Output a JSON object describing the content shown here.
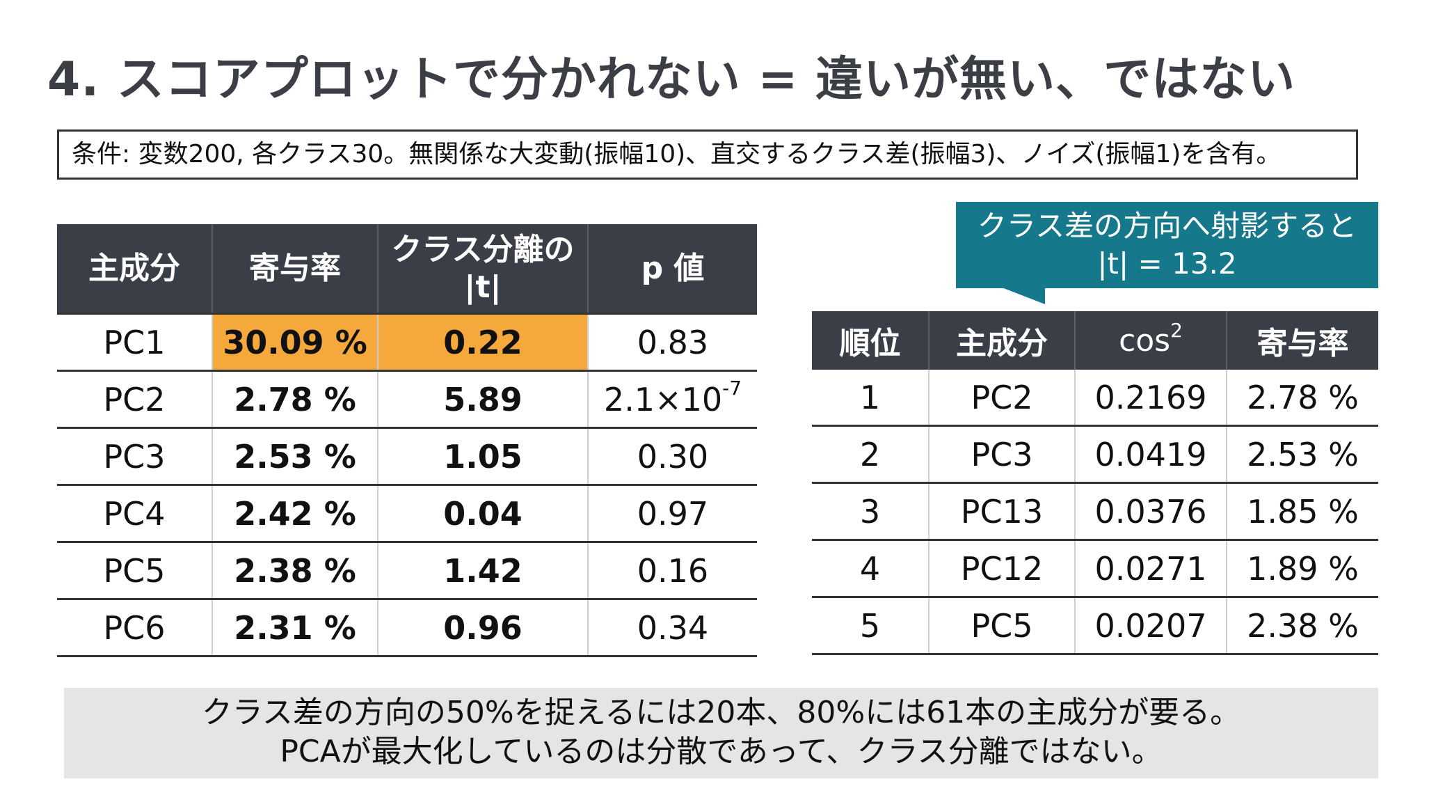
{
  "title": "4. スコアプロットで分かれない = 違いが無い、ではない",
  "conditions": "条件: 変数200, 各クラス30。無関係な大変動(振幅10)、直交するクラス差(振幅3)、ノイズ(振幅1)を含有。",
  "left_table": {
    "headers": [
      "主成分",
      "寄与率",
      "クラス分離の",
      "|t|",
      "p 値"
    ],
    "rows": [
      {
        "pc": "PC1",
        "contribution": "30.09 %",
        "t": "0.22",
        "p": "0.83",
        "p_exp": ""
      },
      {
        "pc": "PC2",
        "contribution": "2.78 %",
        "t": "5.89",
        "p": "2.1×10",
        "p_exp": "-7"
      },
      {
        "pc": "PC3",
        "contribution": "2.53 %",
        "t": "1.05",
        "p": "0.30",
        "p_exp": ""
      },
      {
        "pc": "PC4",
        "contribution": "2.42 %",
        "t": "0.04",
        "p": "0.97",
        "p_exp": ""
      },
      {
        "pc": "PC5",
        "contribution": "2.38 %",
        "t": "1.42",
        "p": "0.16",
        "p_exp": ""
      },
      {
        "pc": "PC6",
        "contribution": "2.31 %",
        "t": "0.96",
        "p": "0.34",
        "p_exp": ""
      }
    ]
  },
  "callout": {
    "line1": "クラス差の方向へ射影すると",
    "line2": "|t| = 13.2"
  },
  "right_table": {
    "headers": [
      "順位",
      "主成分",
      "cos",
      "2",
      "寄与率"
    ],
    "rows": [
      {
        "rank": "1",
        "pc": "PC2",
        "cos2": "0.2169",
        "contribution": "2.78 %"
      },
      {
        "rank": "2",
        "pc": "PC3",
        "cos2": "0.0419",
        "contribution": "2.53 %"
      },
      {
        "rank": "3",
        "pc": "PC13",
        "cos2": "0.0376",
        "contribution": "1.85 %"
      },
      {
        "rank": "4",
        "pc": "PC12",
        "cos2": "0.0271",
        "contribution": "1.89 %"
      },
      {
        "rank": "5",
        "pc": "PC5",
        "cos2": "0.0207",
        "contribution": "2.38 %"
      }
    ]
  },
  "summary": {
    "line1": "クラス差の方向の50%を捉えるには20本、80%には61本の主成分が要る。",
    "line2": "PCAが最大化しているのは分散であって、クラス分離ではない。"
  },
  "colors": {
    "header_bg": "#3a3f47",
    "highlight": "#f5a83c",
    "callout_bg": "#16798b",
    "summary_bg": "#e4e5e6"
  }
}
